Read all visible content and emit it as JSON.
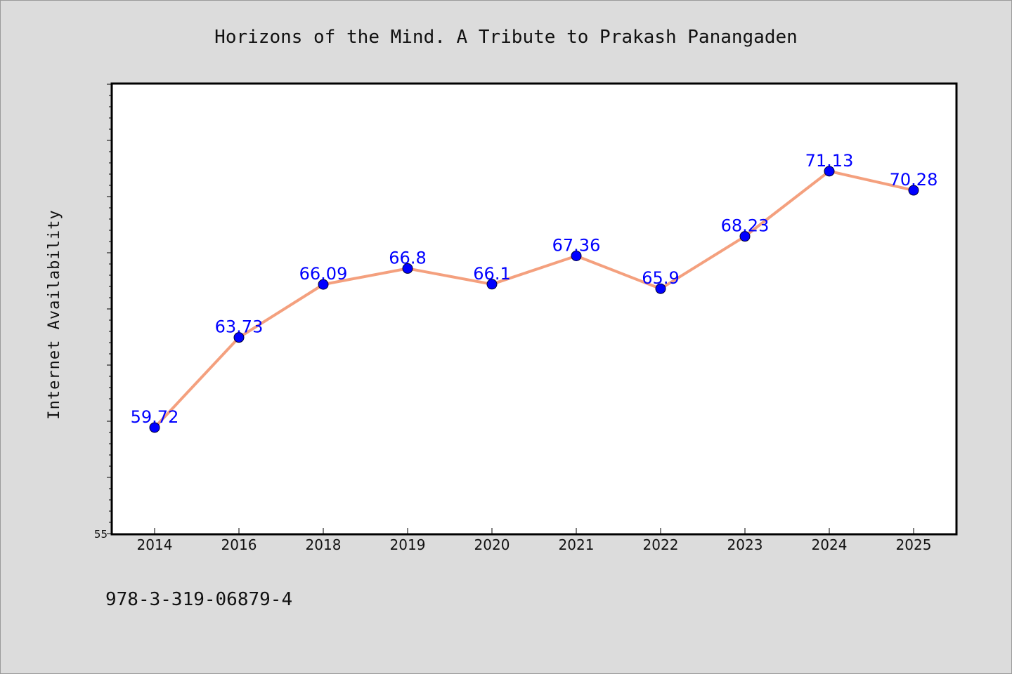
{
  "chart_data": {
    "type": "line",
    "title": "Horizons of the Mind. A Tribute to Prakash Panangaden",
    "xlabel": "",
    "ylabel": "Internet Availability",
    "categories": [
      "2014",
      "2016",
      "2018",
      "2019",
      "2020",
      "2021",
      "2022",
      "2023",
      "2024",
      "2025"
    ],
    "values": [
      59.72,
      63.73,
      66.09,
      66.8,
      66.1,
      67.36,
      65.9,
      68.23,
      71.13,
      70.28
    ],
    "data_labels": [
      "59.72",
      "63.73",
      "66.09",
      "66.8",
      "66.1",
      "67.36",
      "65.9",
      "68.23",
      "71.13",
      "70.28"
    ],
    "ylim": [
      55,
      75
    ],
    "y_tick_label_shown": "55",
    "grid": false,
    "legend": "none",
    "colors": {
      "line": "#f4a07e",
      "marker": "#0000ff",
      "data_label": "#0000ff",
      "plot_background": "#ffffff",
      "page_background": "#dcdcdc"
    }
  },
  "footer": {
    "isbn": "978-3-319-06879-4"
  }
}
